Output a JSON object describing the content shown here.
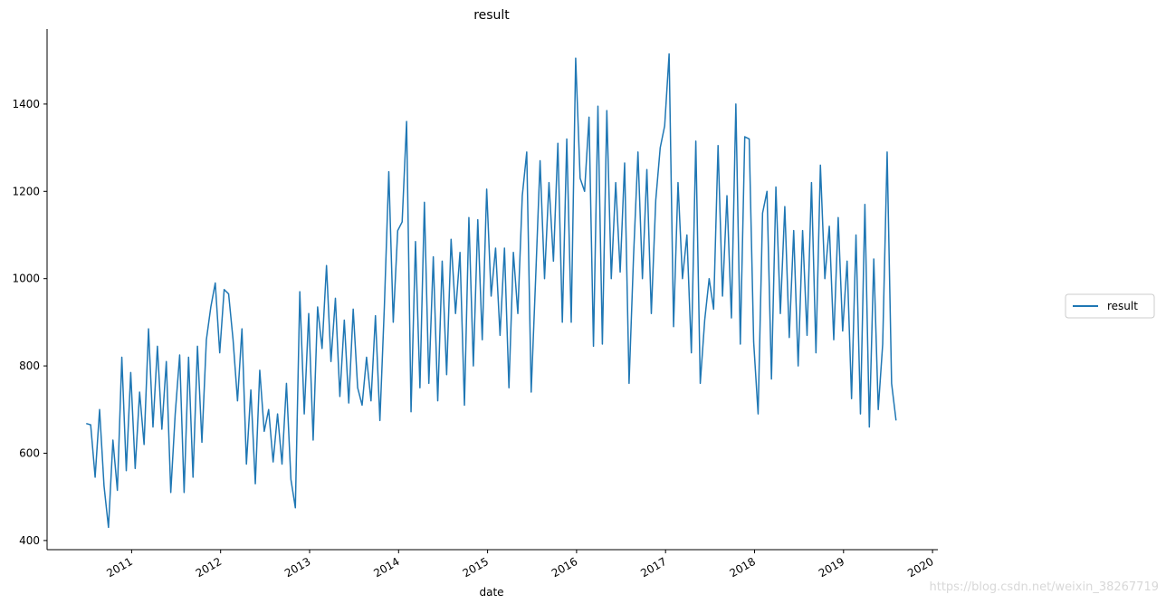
{
  "chart_data": {
    "type": "line",
    "title": "result",
    "xlabel": "date",
    "watermark": "https://blog.csdn.net/weixin_38267719",
    "legend": "right",
    "xlim": [
      2010.05,
      2020.06
    ],
    "xticks": [
      2011,
      2012,
      2013,
      2014,
      2015,
      2016,
      2017,
      2018,
      2019,
      2020
    ],
    "ylim": [
      379,
      1572
    ],
    "yticks": [
      400,
      600,
      800,
      1000,
      1200,
      1400
    ],
    "x": [
      2010.49,
      2010.54,
      2010.59,
      2010.64,
      2010.69,
      2010.74,
      2010.79,
      2010.84,
      2010.89,
      2010.94,
      2010.99,
      2011.04,
      2011.09,
      2011.14,
      2011.19,
      2011.24,
      2011.29,
      2011.34,
      2011.39,
      2011.44,
      2011.49,
      2011.54,
      2011.59,
      2011.64,
      2011.69,
      2011.74,
      2011.79,
      2011.84,
      2011.89,
      2011.94,
      2011.99,
      2012.04,
      2012.09,
      2012.14,
      2012.19,
      2012.24,
      2012.29,
      2012.34,
      2012.39,
      2012.44,
      2012.49,
      2012.54,
      2012.59,
      2012.64,
      2012.69,
      2012.74,
      2012.79,
      2012.84,
      2012.89,
      2012.94,
      2012.99,
      2013.04,
      2013.09,
      2013.14,
      2013.19,
      2013.24,
      2013.29,
      2013.34,
      2013.39,
      2013.44,
      2013.49,
      2013.54,
      2013.59,
      2013.64,
      2013.69,
      2013.74,
      2013.79,
      2013.84,
      2013.89,
      2013.94,
      2013.99,
      2014.04,
      2014.09,
      2014.14,
      2014.19,
      2014.24,
      2014.29,
      2014.34,
      2014.39,
      2014.44,
      2014.49,
      2014.54,
      2014.59,
      2014.64,
      2014.69,
      2014.74,
      2014.79,
      2014.84,
      2014.89,
      2014.94,
      2014.99,
      2015.04,
      2015.09,
      2015.14,
      2015.19,
      2015.24,
      2015.29,
      2015.34,
      2015.39,
      2015.44,
      2015.49,
      2015.54,
      2015.59,
      2015.64,
      2015.69,
      2015.74,
      2015.79,
      2015.84,
      2015.89,
      2015.94,
      2015.99,
      2016.04,
      2016.09,
      2016.14,
      2016.19,
      2016.24,
      2016.29,
      2016.34,
      2016.39,
      2016.44,
      2016.49,
      2016.54,
      2016.59,
      2016.64,
      2016.69,
      2016.74,
      2016.79,
      2016.84,
      2016.89,
      2016.94,
      2016.99,
      2017.04,
      2017.09,
      2017.14,
      2017.19,
      2017.24,
      2017.29,
      2017.34,
      2017.39,
      2017.44,
      2017.49,
      2017.54,
      2017.59,
      2017.64,
      2017.69,
      2017.74,
      2017.79,
      2017.84,
      2017.89,
      2017.94,
      2017.99,
      2018.04,
      2018.09,
      2018.14,
      2018.19,
      2018.24,
      2018.29,
      2018.34,
      2018.39,
      2018.44,
      2018.49,
      2018.54,
      2018.59,
      2018.64,
      2018.69,
      2018.74,
      2018.79,
      2018.84,
      2018.89,
      2018.94,
      2018.99,
      2019.04,
      2019.09,
      2019.14,
      2019.19,
      2019.24,
      2019.29,
      2019.34,
      2019.39,
      2019.44,
      2019.49,
      2019.54,
      2019.59
    ],
    "series": [
      {
        "name": "result",
        "color": "#1f77b4",
        "values": [
          668,
          665,
          545,
          700,
          525,
          430,
          630,
          515,
          820,
          560,
          785,
          565,
          740,
          620,
          885,
          660,
          845,
          655,
          810,
          510,
          690,
          825,
          510,
          820,
          545,
          845,
          625,
          860,
          935,
          990,
          830,
          975,
          965,
          860,
          720,
          885,
          575,
          745,
          530,
          790,
          650,
          700,
          580,
          690,
          575,
          760,
          540,
          475,
          970,
          690,
          920,
          630,
          935,
          840,
          1030,
          810,
          955,
          730,
          905,
          715,
          930,
          750,
          710,
          820,
          720,
          915,
          675,
          935,
          1245,
          900,
          1110,
          1130,
          1360,
          695,
          1085,
          750,
          1175,
          760,
          1050,
          720,
          1040,
          780,
          1090,
          920,
          1060,
          710,
          1140,
          800,
          1135,
          860,
          1205,
          960,
          1070,
          870,
          1070,
          750,
          1060,
          920,
          1190,
          1290,
          740,
          1000,
          1270,
          1000,
          1220,
          1040,
          1310,
          900,
          1320,
          900,
          1505,
          1230,
          1200,
          1370,
          845,
          1395,
          850,
          1385,
          1000,
          1220,
          1015,
          1265,
          760,
          1050,
          1290,
          1000,
          1250,
          920,
          1180,
          1300,
          1350,
          1515,
          890,
          1220,
          1000,
          1100,
          830,
          1315,
          760,
          905,
          1000,
          930,
          1305,
          960,
          1190,
          910,
          1400,
          850,
          1325,
          1320,
          855,
          690,
          1150,
          1200,
          770,
          1210,
          920,
          1165,
          865,
          1110,
          800,
          1110,
          870,
          1220,
          830,
          1260,
          1000,
          1120,
          860,
          1140,
          880,
          1040,
          725,
          1100,
          690,
          1170,
          660,
          1045,
          700,
          850,
          1290,
          760,
          675
        ]
      }
    ]
  }
}
